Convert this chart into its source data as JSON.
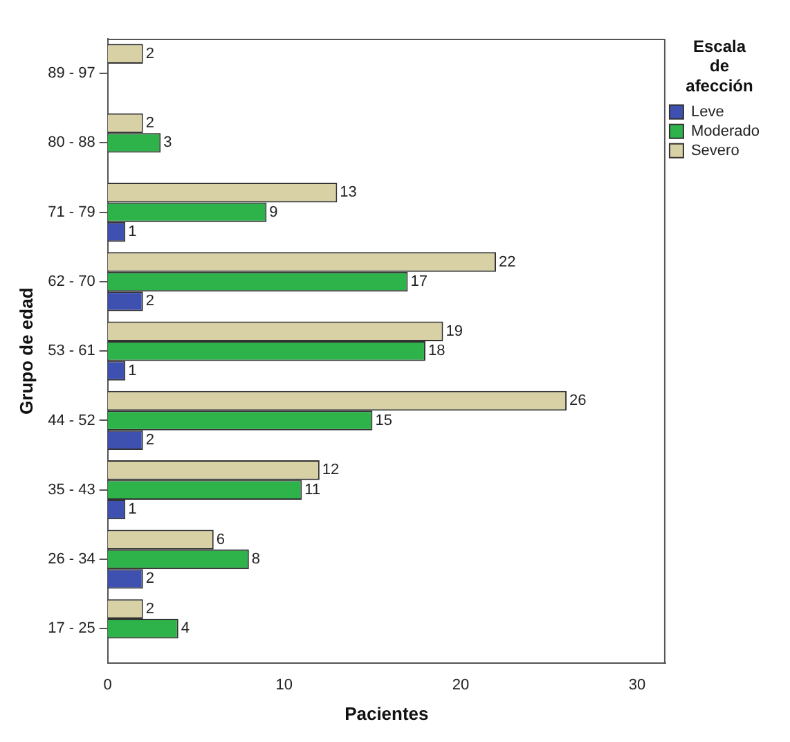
{
  "chart_data": {
    "type": "bar",
    "orientation": "horizontal",
    "xlabel": "Pacientes",
    "ylabel": "Grupo de edad",
    "legend_title": "Escala de afección",
    "categories": [
      "89 - 97",
      "80 - 88",
      "71 - 79",
      "62 - 70",
      "53 - 61",
      "44 - 52",
      "35 - 43",
      "26 - 34",
      "17 - 25"
    ],
    "series": [
      {
        "name": "Severo",
        "color": "#d8d1a5",
        "values": [
          2,
          2,
          13,
          22,
          19,
          26,
          12,
          6,
          2
        ]
      },
      {
        "name": "Moderado",
        "color": "#2db34a",
        "values": [
          null,
          3,
          9,
          17,
          18,
          15,
          11,
          8,
          4
        ]
      },
      {
        "name": "Leve",
        "color": "#3f51b0",
        "values": [
          null,
          null,
          1,
          2,
          1,
          2,
          1,
          2,
          null
        ]
      }
    ],
    "xlim": [
      0,
      31.6
    ],
    "xticks": [
      0,
      10,
      20,
      30
    ],
    "data_labels": true,
    "legend": "top right",
    "grid": false
  }
}
